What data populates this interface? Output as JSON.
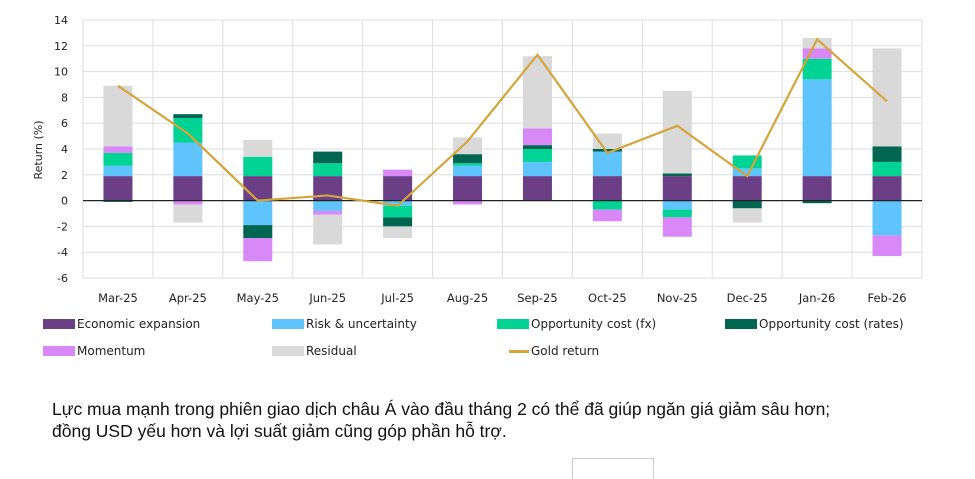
{
  "chart_data": {
    "type": "bar",
    "stacked": true,
    "ylabel": "Return (%)",
    "ylim": [
      -6,
      14
    ],
    "yticks": [
      -6,
      -4,
      -2,
      0,
      2,
      4,
      6,
      8,
      10,
      12,
      14
    ],
    "grid": true,
    "legend_position": "bottom",
    "categories": [
      "Mar-25",
      "Apr-25",
      "May-25",
      "Jun-25",
      "Jul-25",
      "Aug-25",
      "Sep-25",
      "Oct-25",
      "Nov-25",
      "Dec-25",
      "Jan-26",
      "Feb-26"
    ],
    "series": [
      {
        "name": "Economic expansion",
        "color": "#6b3f86",
        "values": [
          1.9,
          1.9,
          1.9,
          1.9,
          1.9,
          1.9,
          1.9,
          1.9,
          1.9,
          1.9,
          1.9,
          1.9
        ]
      },
      {
        "name": "Risk & uncertainty",
        "color": "#5ec4fb",
        "values": [
          0.8,
          2.6,
          -1.9,
          -0.8,
          -0.4,
          0.8,
          1.1,
          1.9,
          -0.7,
          0.6,
          7.5,
          -2.7
        ]
      },
      {
        "name": "Opportunity cost (fx)",
        "color": "#00d394",
        "values": [
          1.0,
          1.9,
          1.5,
          1.0,
          -0.9,
          0.2,
          1.0,
          -0.7,
          -0.6,
          1.0,
          1.6,
          1.1
        ]
      },
      {
        "name": "Opportunity cost (rates)",
        "color": "#006551",
        "values": [
          -0.1,
          0.3,
          -1.0,
          0.9,
          -0.7,
          0.7,
          0.3,
          0.2,
          0.2,
          -0.6,
          -0.2,
          1.2
        ]
      },
      {
        "name": "Momentum",
        "color": "#d988f8",
        "values": [
          0.5,
          -0.3,
          -1.8,
          -0.3,
          0.5,
          -0.3,
          1.3,
          -0.9,
          -1.5,
          0.0,
          0.8,
          -1.6
        ]
      },
      {
        "name": "Residual",
        "color": "#d9d9d9",
        "values": [
          4.7,
          -1.4,
          1.3,
          -2.3,
          -0.9,
          1.3,
          5.6,
          1.2,
          6.4,
          -1.1,
          0.8,
          7.6
        ]
      }
    ],
    "line": {
      "name": "Gold return",
      "color": "#d5a53a",
      "values": [
        8.9,
        5.2,
        0.0,
        0.4,
        -0.4,
        4.6,
        11.3,
        3.7,
        5.8,
        1.9,
        12.5,
        7.7
      ]
    }
  },
  "caption": {
    "line1": "Lực mua mạnh trong phiên giao dịch châu Á vào đầu tháng 2 có thể đã giúp ngăn giá giảm sâu hơn;",
    "line2": "đồng USD yếu hơn và lợi suất giảm cũng góp phần hỗ trợ."
  }
}
